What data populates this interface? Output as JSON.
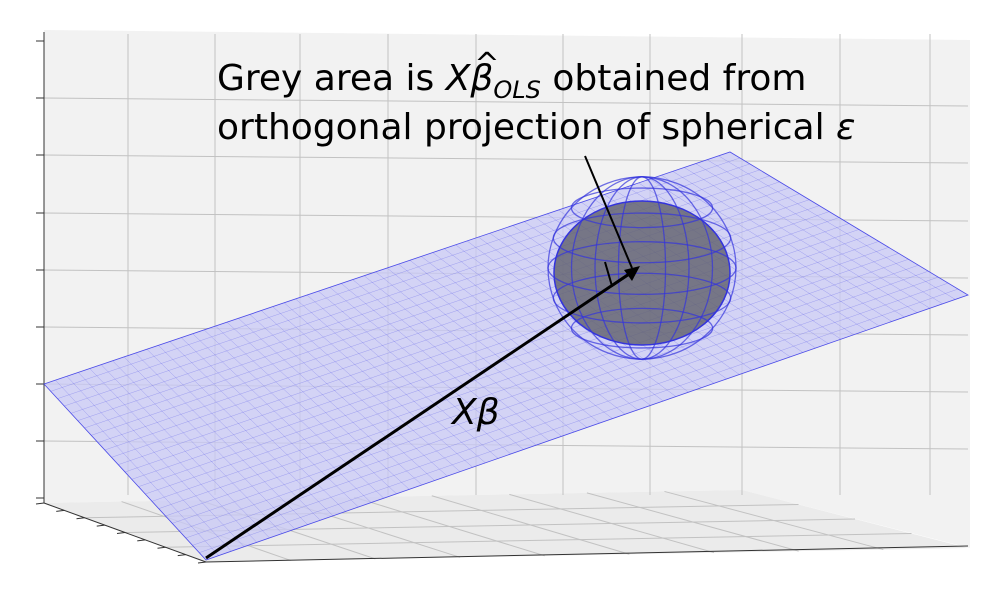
{
  "annotation": {
    "line1_prefix": "Grey area is ",
    "line1_math_X": "X",
    "line1_math_beta": "β",
    "line1_math_hat": "^",
    "line1_math_sub": "OLS",
    "line1_suffix": " obtained from",
    "line2": "orthogonal projection of spherical ",
    "line2_math": "ε"
  },
  "vector_label": "Xβ",
  "colors": {
    "plane_fill": "#c8c8f5",
    "plane_grid": "#4a4ae8",
    "sphere_wire": "#3333dd",
    "projection_fill": "#6a6a78",
    "axes_pane": "#f2f2f2",
    "pane_grid": "#bfbfbf",
    "ink": "#000000"
  }
}
